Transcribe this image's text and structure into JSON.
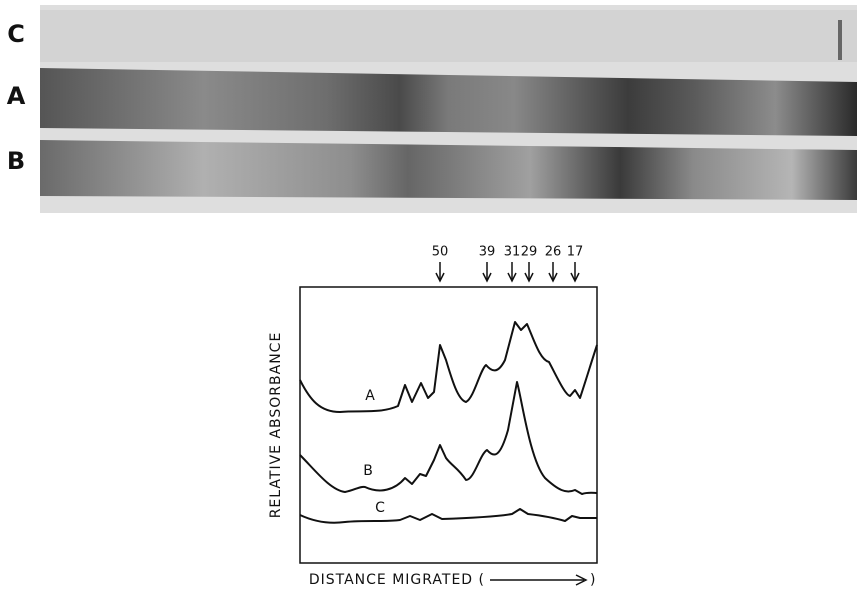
{
  "gel": {
    "lane_labels": [
      "C",
      "A",
      "B"
    ]
  },
  "densitometry": {
    "markers": [
      "50",
      "39",
      "31",
      "29",
      "26",
      "17"
    ],
    "y_label": "RELATIVE ABSORBANCE",
    "x_label_start": "DISTANCE MIGRATED (",
    "x_label_end": ")",
    "trace_labels": [
      "A",
      "B",
      "C"
    ]
  }
}
